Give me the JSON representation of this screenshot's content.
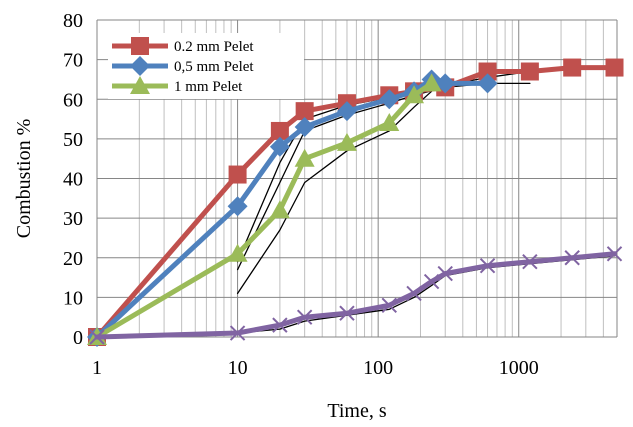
{
  "chart_data": {
    "type": "line",
    "xlabel": "Time, s",
    "ylabel": "Combustion %",
    "x_scale": "log",
    "xlim": [
      1,
      5000
    ],
    "ylim": [
      0,
      80
    ],
    "x_ticks": [
      1,
      10,
      100,
      1000
    ],
    "x_tick_labels": [
      "1",
      "10",
      "100",
      "1000"
    ],
    "y_ticks": [
      0,
      10,
      20,
      30,
      40,
      50,
      60,
      70,
      80
    ],
    "y_tick_labels": [
      "0",
      "10",
      "20",
      "30",
      "40",
      "50",
      "60",
      "70",
      "80"
    ],
    "grid": true,
    "legend_position": "top-left",
    "series": [
      {
        "name": "0.2 mm Pelet",
        "color": "#C0504D",
        "marker": "square",
        "x": [
          1,
          10,
          20,
          30,
          60,
          120,
          180,
          300,
          600,
          1200,
          2400,
          4800
        ],
        "y": [
          0,
          41,
          52,
          57,
          59,
          61,
          62,
          63,
          67,
          67,
          68,
          68
        ]
      },
      {
        "name": "0,5 mm Pelet",
        "color": "#4F81BD",
        "marker": "diamond",
        "x": [
          1,
          10,
          20,
          30,
          60,
          120,
          180,
          240,
          300,
          600
        ],
        "y": [
          0,
          33,
          48,
          53,
          57,
          60,
          62,
          65,
          64,
          64
        ]
      },
      {
        "name": "1 mm Pelet",
        "color": "#9BBB59",
        "marker": "triangle",
        "x": [
          1,
          10,
          20,
          30,
          60,
          120,
          180,
          240
        ],
        "y": [
          0,
          21,
          32,
          45,
          49,
          54,
          61,
          64
        ]
      },
      {
        "color": "#8064A2",
        "marker": "x",
        "x": [
          1,
          10,
          20,
          30,
          60,
          120,
          180,
          240,
          300,
          600,
          1200,
          2400,
          4800
        ],
        "y": [
          0,
          1,
          3,
          5,
          6,
          8,
          11,
          14,
          16,
          18,
          19,
          20,
          21
        ]
      },
      {
        "color": "#000000",
        "marker": "none",
        "x": [
          10,
          20,
          30,
          60,
          120,
          180,
          300,
          600,
          1200,
          2400,
          4800
        ],
        "y": [
          19,
          44,
          55,
          58.5,
          60.5,
          62,
          63.5,
          65.5,
          67,
          67.5,
          68
        ]
      },
      {
        "color": "#000000",
        "marker": "none",
        "x": [
          10,
          20,
          30,
          60,
          120,
          180,
          300,
          600,
          1200
        ],
        "y": [
          17,
          39,
          52,
          56,
          59,
          61,
          63,
          64,
          64
        ]
      },
      {
        "color": "#000000",
        "marker": "none",
        "x": [
          10,
          20,
          30,
          60,
          120,
          180,
          240
        ],
        "y": [
          11,
          27,
          39,
          47,
          52,
          58,
          62
        ]
      },
      {
        "color": "#000000",
        "marker": "none",
        "x": [
          10,
          20,
          30,
          60,
          120,
          180,
          240,
          300,
          600,
          1200,
          2400,
          4800
        ],
        "y": [
          1,
          2,
          4,
          5.5,
          7,
          10,
          13,
          15.5,
          17.5,
          18.5,
          19.5,
          20.5
        ]
      }
    ]
  }
}
